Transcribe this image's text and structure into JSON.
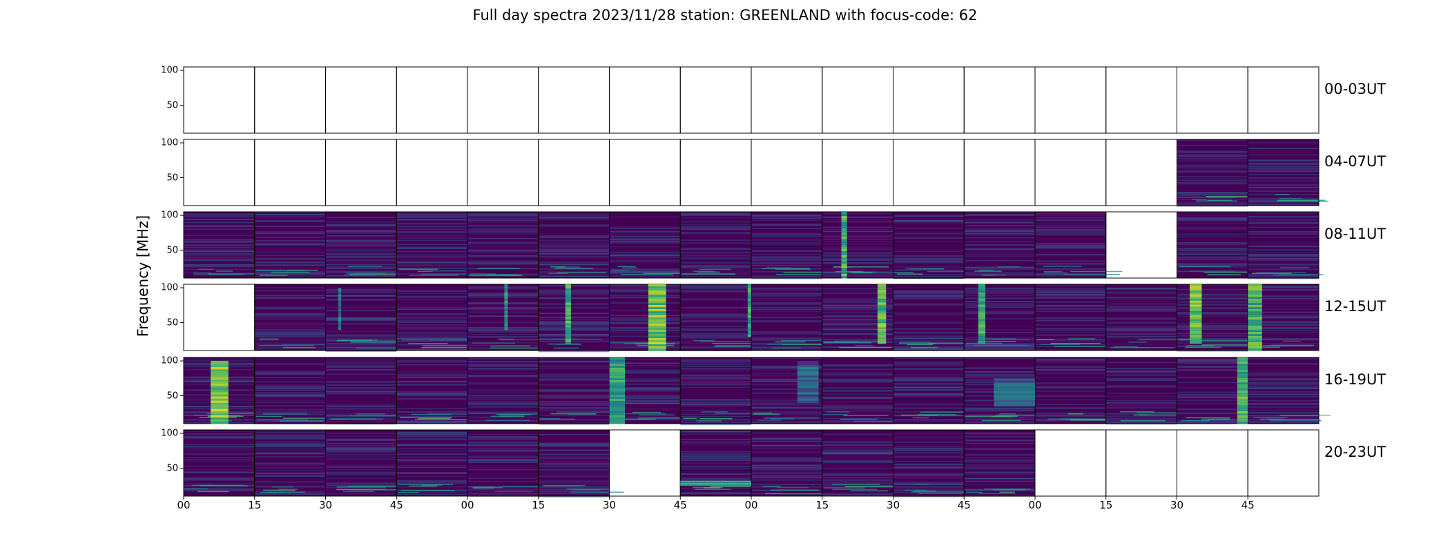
{
  "chart_data": {
    "type": "heatmap",
    "title": "Full day spectra 2023/11/28 station: GREENLAND with focus-code: 62",
    "xlabel": "",
    "ylabel": "Frequency [MHz]",
    "y_range_mhz": [
      10,
      105
    ],
    "yticks": [
      50,
      100
    ],
    "xtick_labels": [
      "00",
      "15",
      "30",
      "45",
      "00",
      "15",
      "30",
      "45",
      "00",
      "15",
      "30",
      "45",
      "00",
      "15",
      "30",
      "45"
    ],
    "colormap": "viridis",
    "rows": [
      {
        "label": "00-03UT",
        "panels": "0000000000000000",
        "bursts": []
      },
      {
        "label": "04-07UT",
        "panels": "0000000000000011",
        "bursts": []
      },
      {
        "label": "08-11UT",
        "panels": "1111111111111011",
        "bursts": [
          {
            "panel": 9,
            "x": 0.27,
            "w": 0.08,
            "fmin": 10,
            "fmax": 105,
            "level": 0.85
          }
        ]
      },
      {
        "label": "12-15UT",
        "panels": "0111111111111111",
        "bursts": [
          {
            "panel": 2,
            "x": 0.18,
            "w": 0.04,
            "fmin": 40,
            "fmax": 100,
            "level": 0.6
          },
          {
            "panel": 4,
            "x": 0.52,
            "w": 0.05,
            "fmin": 40,
            "fmax": 105,
            "level": 0.7
          },
          {
            "panel": 5,
            "x": 0.38,
            "w": 0.08,
            "fmin": 20,
            "fmax": 105,
            "level": 0.85
          },
          {
            "panel": 6,
            "x": 0.55,
            "w": 0.25,
            "fmin": 10,
            "fmax": 105,
            "level": 0.95
          },
          {
            "panel": 7,
            "x": 0.95,
            "w": 0.05,
            "fmin": 30,
            "fmax": 105,
            "level": 0.8
          },
          {
            "panel": 9,
            "x": 0.78,
            "w": 0.12,
            "fmin": 20,
            "fmax": 105,
            "level": 0.9
          },
          {
            "panel": 11,
            "x": 0.2,
            "w": 0.1,
            "fmin": 20,
            "fmax": 105,
            "level": 0.8
          },
          {
            "panel": 14,
            "x": 0.18,
            "w": 0.17,
            "fmin": 20,
            "fmax": 105,
            "level": 0.95
          },
          {
            "panel": 15,
            "x": 0.0,
            "w": 0.2,
            "fmin": 10,
            "fmax": 105,
            "level": 0.85
          }
        ]
      },
      {
        "label": "16-19UT",
        "panels": "1111111111111111",
        "bursts": [
          {
            "panel": 0,
            "x": 0.38,
            "w": 0.25,
            "fmin": 10,
            "fmax": 100,
            "level": 1.0
          },
          {
            "panel": 6,
            "x": 0.0,
            "w": 0.22,
            "fmin": 10,
            "fmax": 105,
            "level": 0.75
          },
          {
            "panel": 8,
            "x": 0.65,
            "w": 0.3,
            "fmin": 40,
            "fmax": 100,
            "level": 0.5
          },
          {
            "panel": 11,
            "x": 0.42,
            "w": 0.58,
            "fmin": 35,
            "fmax": 75,
            "level": 0.5
          },
          {
            "panel": 14,
            "x": 0.85,
            "w": 0.15,
            "fmin": 10,
            "fmax": 105,
            "level": 0.85
          }
        ]
      },
      {
        "label": "20-23UT",
        "panels": "1111110111110000",
        "bursts": [
          {
            "panel": 7,
            "x": 0.0,
            "w": 1.0,
            "fmin": 25,
            "fmax": 32,
            "level": 0.8
          }
        ]
      }
    ]
  }
}
